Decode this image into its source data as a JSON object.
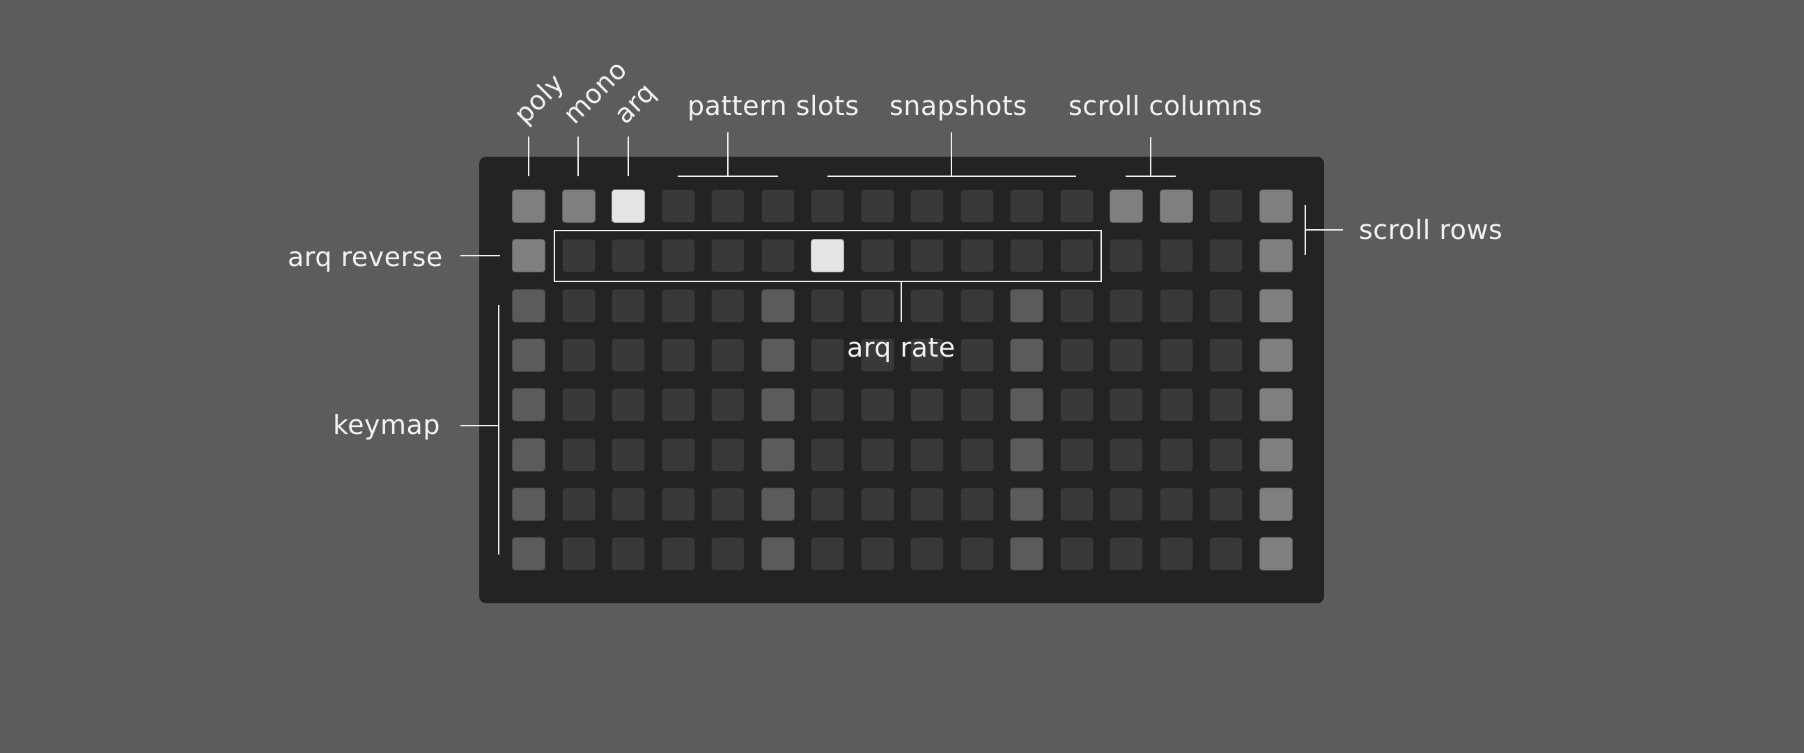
{
  "labels": {
    "poly": "poly",
    "mono": "mono",
    "arq": "arq",
    "pattern_slots": "pattern slots",
    "snapshots": "snapshots",
    "scroll_columns": "scroll columns",
    "scroll_rows": "scroll rows",
    "arq_reverse": "arq reverse",
    "arq_rate": "arq rate",
    "keymap": "keymap"
  },
  "colors": {
    "background": "#5b5c5b",
    "device": "#232323",
    "off": "#383938",
    "dim": "#5b5b5b",
    "mid": "#7f7f7f",
    "bright": "#e4e4e4",
    "line": "#f2f2f2"
  },
  "grid": {
    "cols": 16,
    "rows": 8,
    "levels": [
      [
        "mid",
        "mid",
        "bright",
        "off",
        "off",
        "off",
        "off",
        "off",
        "off",
        "off",
        "off",
        "off",
        "mid",
        "mid",
        "off",
        "mid"
      ],
      [
        "mid",
        "off",
        "off",
        "off",
        "off",
        "off",
        "bright",
        "off",
        "off",
        "off",
        "off",
        "off",
        "off",
        "off",
        "off",
        "mid"
      ],
      [
        "dim",
        "off",
        "off",
        "off",
        "off",
        "dim",
        "off",
        "off",
        "off",
        "off",
        "dim",
        "off",
        "off",
        "off",
        "off",
        "mid"
      ],
      [
        "dim",
        "off",
        "off",
        "off",
        "off",
        "dim",
        "off",
        "off",
        "off",
        "off",
        "dim",
        "off",
        "off",
        "off",
        "off",
        "mid"
      ],
      [
        "dim",
        "off",
        "off",
        "off",
        "off",
        "dim",
        "off",
        "off",
        "off",
        "off",
        "dim",
        "off",
        "off",
        "off",
        "off",
        "mid"
      ],
      [
        "dim",
        "off",
        "off",
        "off",
        "off",
        "dim",
        "off",
        "off",
        "off",
        "off",
        "dim",
        "off",
        "off",
        "off",
        "off",
        "mid"
      ],
      [
        "dim",
        "off",
        "off",
        "off",
        "off",
        "dim",
        "off",
        "off",
        "off",
        "off",
        "dim",
        "off",
        "off",
        "off",
        "off",
        "mid"
      ],
      [
        "dim",
        "off",
        "off",
        "off",
        "off",
        "dim",
        "off",
        "off",
        "off",
        "off",
        "dim",
        "off",
        "off",
        "off",
        "off",
        "mid"
      ]
    ]
  }
}
